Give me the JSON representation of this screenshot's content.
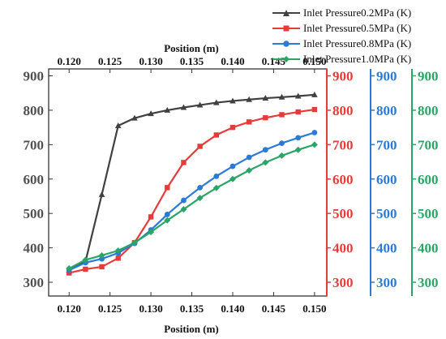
{
  "chart_data": {
    "type": "line",
    "xlabel": "Position (m)",
    "x_ticks": [
      "0.120",
      "0.125",
      "0.130",
      "0.135",
      "0.140",
      "0.145",
      "0.150"
    ],
    "xlim": [
      0.1175,
      0.1515
    ],
    "ylim": [
      260,
      920
    ],
    "y_ticks": [
      "300",
      "400",
      "500",
      "600",
      "700",
      "800",
      "900"
    ],
    "y_axes": [
      {
        "name": "left",
        "color": "#505050"
      },
      {
        "name": "right-1",
        "color": "#e53b3b"
      },
      {
        "name": "right-2",
        "color": "#2a7ad6"
      },
      {
        "name": "right-3",
        "color": "#2aa566"
      }
    ],
    "x": [
      0.12,
      0.122,
      0.124,
      0.126,
      0.128,
      0.13,
      0.132,
      0.134,
      0.136,
      0.138,
      0.14,
      0.142,
      0.144,
      0.146,
      0.148,
      0.15
    ],
    "series": [
      {
        "name": "Inlet Pressure0.2MPa (K)",
        "color": "#404040",
        "marker": "triangle",
        "values": [
          335,
          360,
          555,
          755,
          777,
          790,
          800,
          808,
          815,
          822,
          827,
          831,
          835,
          838,
          841,
          845
        ]
      },
      {
        "name": "Inlet Pressure0.5MPa (K)",
        "color": "#e53b3b",
        "marker": "square",
        "values": [
          327,
          338,
          345,
          370,
          415,
          490,
          575,
          648,
          695,
          728,
          750,
          766,
          778,
          787,
          795,
          802
        ]
      },
      {
        "name": "Inlet Pressure0.8MPa (K)",
        "color": "#2a7ad6",
        "marker": "circle",
        "values": [
          335,
          357,
          368,
          385,
          413,
          452,
          497,
          538,
          575,
          608,
          637,
          663,
          685,
          704,
          720,
          735
        ]
      },
      {
        "name": "Inlet Pressure1.0MPa (K)",
        "color": "#2aa566",
        "marker": "diamond",
        "values": [
          340,
          365,
          378,
          392,
          415,
          446,
          480,
          512,
          545,
          574,
          600,
          625,
          648,
          668,
          685,
          700
        ]
      }
    ]
  }
}
